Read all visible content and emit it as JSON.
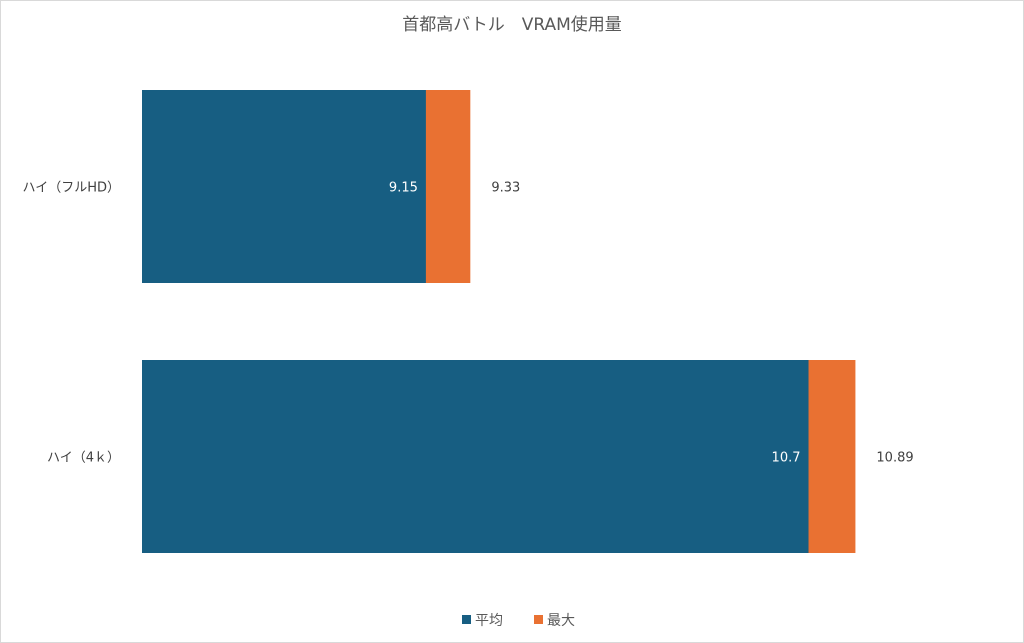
{
  "chart_data": {
    "type": "bar",
    "orientation": "horizontal",
    "overlap": true,
    "title": "首都高バトル　VRAM使用量",
    "categories": [
      "ハイ（フルHD）",
      "ハイ（4ｋ）"
    ],
    "series": [
      {
        "name": "平均",
        "values": [
          9.15,
          10.7
        ],
        "color": "#175e82"
      },
      {
        "name": "最大",
        "values": [
          9.33,
          10.89
        ],
        "color": "#e97132"
      }
    ],
    "data_labels": [
      [
        "9.15",
        "10.7"
      ],
      [
        "9.33",
        "10.89"
      ]
    ],
    "xlim": [
      8,
      11.5
    ],
    "axes_visible": false,
    "grid": false,
    "legend": "bottom"
  }
}
